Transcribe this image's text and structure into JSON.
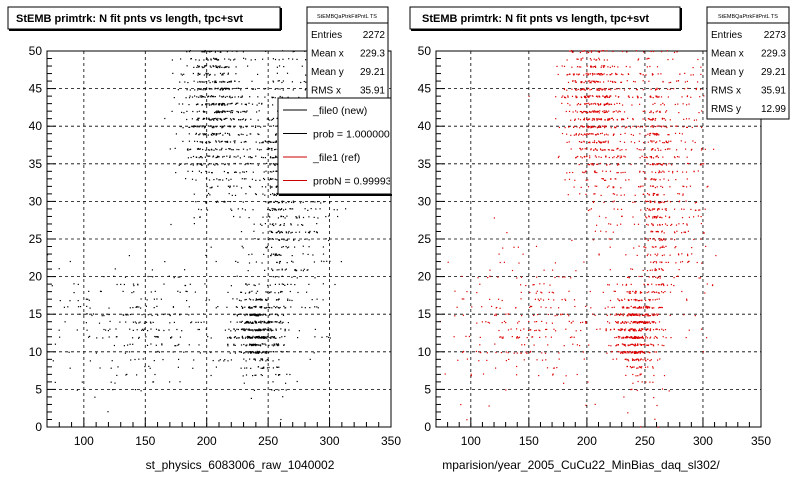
{
  "panels": [
    {
      "title": "StEMB primtrk: N fit pnts vs length, tpc+svt",
      "stats_header": "StEMBQaPtrkFitPntL TS",
      "stats": [
        {
          "label": "Entries",
          "value": "2272"
        },
        {
          "label": "Mean x",
          "value": "229.3"
        },
        {
          "label": "Mean y",
          "value": "29.21"
        },
        {
          "label": "RMS x",
          "value": "35.91"
        }
      ],
      "legend": [
        {
          "label": "_file0 (new)",
          "color": "#000000"
        },
        {
          "label": "prob = 1.000000",
          "color": "#000000"
        },
        {
          "label": "_file1 (ref)",
          "color": "#cc0000"
        },
        {
          "label": "probN = 0.99993",
          "color": "#cc0000"
        }
      ],
      "footer": "st_physics_6083006_raw_1040002"
    },
    {
      "title": "StEMB primtrk: N fit pnts vs length, tpc+svt",
      "stats_header": "StEMBQaPtrkFitPntL TS",
      "stats": [
        {
          "label": "Entries",
          "value": "2273"
        },
        {
          "label": "Mean x",
          "value": "229.3"
        },
        {
          "label": "Mean y",
          "value": "29.21"
        },
        {
          "label": "RMS x",
          "value": "35.91"
        },
        {
          "label": "RMS y",
          "value": "12.99"
        }
      ],
      "footer": "mparision/year_2005_CuCu22_MinBias_daq_sl302/"
    }
  ],
  "colors": {
    "file0_points": "#000000",
    "file1_points": "#dd0000",
    "frame": "#000000",
    "grid": "#000000"
  },
  "chart_data": [
    {
      "type": "scatter",
      "title": "StEMB primtrk: N fit pnts vs length, tpc+svt",
      "series": [
        {
          "name": "_file0 (new)",
          "color": "#000000"
        }
      ],
      "xlim": [
        70,
        350
      ],
      "ylim": [
        0,
        50
      ],
      "xticks": [
        100,
        150,
        200,
        250,
        300,
        350
      ],
      "yticks": [
        0,
        5,
        10,
        15,
        20,
        25,
        30,
        35,
        40,
        45,
        50
      ],
      "grid": true,
      "legend_position": "top-right",
      "point_count": 2272,
      "clusters": [
        {
          "x": 205,
          "y": 43,
          "sx": 12,
          "sy": 5,
          "w": 0.24
        },
        {
          "x": 240,
          "y": 13,
          "sx": 10,
          "sy": 3,
          "w": 0.24
        },
        {
          "x": 258,
          "y": 30,
          "sx": 6,
          "sy": 12,
          "w": 0.16
        },
        {
          "x": 225,
          "y": 38,
          "sx": 22,
          "sy": 7,
          "w": 0.12
        },
        {
          "x": 150,
          "y": 14,
          "sx": 35,
          "sy": 4,
          "w": 0.12
        },
        {
          "x": 282,
          "y": 33,
          "sx": 14,
          "sy": 12,
          "w": 0.12
        }
      ]
    },
    {
      "type": "scatter",
      "title": "StEMB primtrk: N fit pnts vs length, tpc+svt",
      "series": [
        {
          "name": "_file1 (ref)",
          "color": "#dd0000"
        }
      ],
      "xlim": [
        70,
        350
      ],
      "ylim": [
        0,
        50
      ],
      "xticks": [
        100,
        150,
        200,
        250,
        300,
        350
      ],
      "yticks": [
        0,
        5,
        10,
        15,
        20,
        25,
        30,
        35,
        40,
        45,
        50
      ],
      "grid": true,
      "point_count": 2273,
      "clusters": [
        {
          "x": 205,
          "y": 43,
          "sx": 12,
          "sy": 5,
          "w": 0.24
        },
        {
          "x": 240,
          "y": 13,
          "sx": 10,
          "sy": 3,
          "w": 0.24
        },
        {
          "x": 258,
          "y": 30,
          "sx": 6,
          "sy": 12,
          "w": 0.16
        },
        {
          "x": 225,
          "y": 38,
          "sx": 22,
          "sy": 7,
          "w": 0.12
        },
        {
          "x": 150,
          "y": 14,
          "sx": 35,
          "sy": 4,
          "w": 0.12
        },
        {
          "x": 282,
          "y": 33,
          "sx": 14,
          "sy": 12,
          "w": 0.12
        }
      ]
    }
  ]
}
